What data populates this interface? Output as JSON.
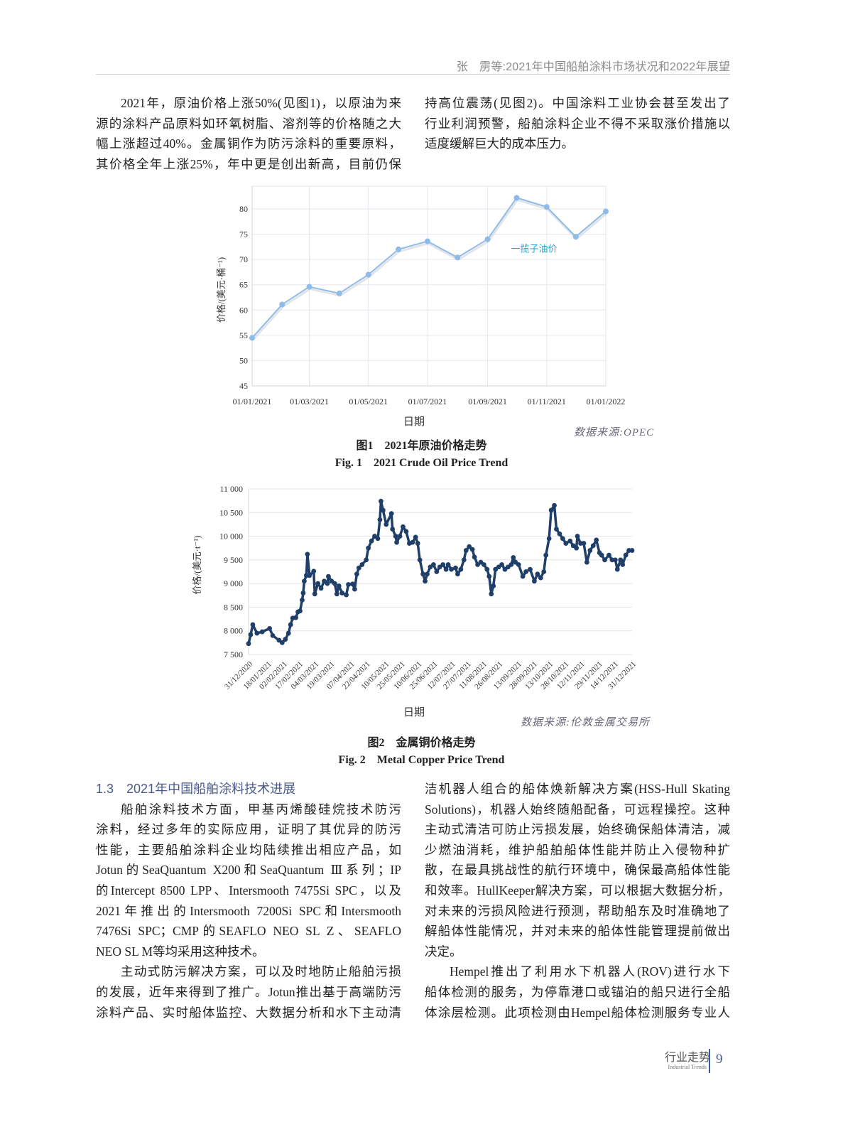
{
  "header": {
    "running_title": "张　雳等:2021年中国船舶涂料市场状况和2022年展望"
  },
  "intro": {
    "left_lines": [
      "2021年，原油价格上涨50%(见图1)，以原油为来",
      "源的涂料产品原料如环氧树脂、溶剂等的价格随之大",
      "幅上涨超过40%。金属铜作为防污涂料的重要原料，",
      "其价格全年上涨25%，年中更是创出新高，目前仍保"
    ],
    "right_lines": [
      "持高位震荡(见图2)。中国涂料工业协会甚至发出了",
      "行业利润预警，船舶涂料企业不得不采取涨价措施以",
      "适度缓解巨大的成本压力。"
    ]
  },
  "figure1": {
    "x_title": "日期",
    "source": "数据来源:OPEC",
    "caption_cn": "图1　2021年原油价格走势",
    "caption_en": "Fig. 1　2021 Crude Oil Price Trend"
  },
  "figure2": {
    "x_title": "日期",
    "source": "数据来源:伦敦金属交易所",
    "caption_cn": "图2　金属铜价格走势",
    "caption_en": "Fig. 2　Metal Copper Price Trend"
  },
  "chart_data": [
    {
      "type": "line",
      "ylabel": "价格/(美元·桶⁻¹)",
      "xlabel": "日期",
      "ylim": [
        45,
        85
      ],
      "yticks": [
        "45",
        "50",
        "55",
        "60",
        "65",
        "70",
        "75",
        "80"
      ],
      "xticks": [
        "01/01/2021",
        "01/03/2021",
        "01/05/2021",
        "01/07/2021",
        "01/09/2021",
        "01/11/2021",
        "01/01/2022"
      ],
      "grid": true,
      "legend_position": "inline-right",
      "color": "#8fbbe8",
      "label_color": "#22a7d0",
      "series": [
        {
          "name": "一揽子油价",
          "x": [
            "01/01/2021",
            "01/02/2021",
            "01/03/2021",
            "01/04/2021",
            "01/05/2021",
            "01/06/2021",
            "01/07/2021",
            "01/08/2021",
            "01/09/2021",
            "01/10/2021",
            "01/11/2021",
            "01/12/2021",
            "01/01/2022"
          ],
          "values": [
            54.5,
            61.1,
            64.6,
            63.3,
            67.0,
            72.0,
            73.6,
            70.4,
            74.0,
            82.2,
            80.4,
            74.5,
            79.5
          ]
        }
      ]
    },
    {
      "type": "line",
      "ylabel": "价格/(美元·t⁻¹)",
      "xlabel": "日期",
      "ylim": [
        7500,
        11000
      ],
      "yticks": [
        "7 500",
        "8 000",
        "8 500",
        "9 000",
        "9 500",
        "10 000",
        "10 500",
        "11 000"
      ],
      "xticks": [
        "31/12/2020",
        "18/01/2021",
        "02/02/2021",
        "17/02/2021",
        "04/03/2021",
        "19/03/2021",
        "07/04/2021",
        "22/04/2021",
        "10/05/2021",
        "25/05/2021",
        "10/06/2021",
        "25/06/2021",
        "12/07/2021",
        "27/07/2021",
        "11/08/2021",
        "26/08/2021",
        "13/09/2021",
        "28/09/2021",
        "13/10/2021",
        "28/10/2021",
        "12/11/2021",
        "29/11/2021",
        "14/12/2021",
        "31/12/2021"
      ],
      "grid": true,
      "color": "#1f3f68",
      "series": [
        {
          "x": [
            "2020-12-31",
            "2021-01-02",
            "2021-01-04",
            "2021-01-08",
            "2021-01-13",
            "2021-01-20",
            "2021-01-23",
            "2021-01-29",
            "2021-02-01",
            "2021-02-04",
            "2021-02-07",
            "2021-02-09",
            "2021-02-11",
            "2021-02-14",
            "2021-02-16",
            "2021-02-18",
            "2021-02-20",
            "2021-02-21",
            "2021-02-22",
            "2021-02-24",
            "2021-02-25",
            "2021-02-27",
            "2021-03-03",
            "2021-03-04",
            "2021-03-07",
            "2021-03-10",
            "2021-03-13",
            "2021-03-16",
            "2021-03-17",
            "2021-03-20",
            "2021-03-23",
            "2021-03-25",
            "2021-03-27",
            "2021-03-30",
            "2021-04-03",
            "2021-04-05",
            "2021-04-09",
            "2021-04-11",
            "2021-04-13",
            "2021-04-15",
            "2021-04-18",
            "2021-04-22",
            "2021-04-24",
            "2021-04-27",
            "2021-04-30",
            "2021-05-03",
            "2021-05-05",
            "2021-05-06",
            "2021-05-08",
            "2021-05-11",
            "2021-05-16",
            "2021-05-17",
            "2021-05-20",
            "2021-05-21",
            "2021-05-24",
            "2021-05-27",
            "2021-05-30",
            "2021-06-02",
            "2021-06-05",
            "2021-06-08",
            "2021-06-10",
            "2021-06-12",
            "2021-06-15",
            "2021-06-17",
            "2021-06-19",
            "2021-06-22",
            "2021-06-25",
            "2021-06-28",
            "2021-07-01",
            "2021-07-04",
            "2021-07-07",
            "2021-07-09",
            "2021-07-12",
            "2021-07-16",
            "2021-07-18",
            "2021-07-21",
            "2021-07-24",
            "2021-07-26",
            "2021-07-29",
            "2021-08-01",
            "2021-08-03",
            "2021-08-06",
            "2021-08-09",
            "2021-08-12",
            "2021-08-15",
            "2021-08-17",
            "2021-08-19",
            "2021-08-21",
            "2021-08-23",
            "2021-08-26",
            "2021-08-29",
            "2021-09-01",
            "2021-09-04",
            "2021-09-07",
            "2021-09-09",
            "2021-09-11",
            "2021-09-14",
            "2021-09-18",
            "2021-09-21",
            "2021-09-25",
            "2021-09-29",
            "2021-10-02",
            "2021-10-05",
            "2021-10-08",
            "2021-10-10",
            "2021-10-13",
            "2021-10-15",
            "2021-10-18",
            "2021-10-20",
            "2021-10-23",
            "2021-10-26",
            "2021-10-29",
            "2021-11-02",
            "2021-11-05",
            "2021-11-08",
            "2021-11-09",
            "2021-11-12",
            "2021-11-15",
            "2021-11-18",
            "2021-11-21",
            "2021-11-24",
            "2021-11-27",
            "2021-11-30",
            "2021-12-02",
            "2021-12-05",
            "2021-12-09",
            "2021-12-12",
            "2021-12-15",
            "2021-12-17",
            "2021-12-20",
            "2021-12-22",
            "2021-12-25",
            "2021-12-28",
            "2021-12-31"
          ],
          "values": [
            7730,
            7920,
            8130,
            7950,
            7980,
            8050,
            7900,
            7800,
            7750,
            7820,
            7950,
            8130,
            8270,
            8280,
            8400,
            8420,
            8650,
            8800,
            9050,
            9170,
            9620,
            9170,
            9260,
            8780,
            9000,
            8900,
            9050,
            9000,
            9150,
            9050,
            9000,
            8780,
            8950,
            8800,
            8760,
            8980,
            8990,
            8880,
            9200,
            9330,
            9400,
            9500,
            9750,
            9900,
            10000,
            9950,
            10350,
            10740,
            10550,
            10250,
            10480,
            10150,
            10000,
            9870,
            10000,
            10200,
            10100,
            9850,
            9870,
            9980,
            9850,
            9500,
            9200,
            9050,
            9200,
            9350,
            9400,
            9250,
            9350,
            9400,
            9300,
            9400,
            9300,
            9330,
            9200,
            9300,
            9500,
            9700,
            9780,
            9720,
            9560,
            9400,
            9450,
            9400,
            9300,
            9150,
            8780,
            8950,
            9300,
            9350,
            9400,
            9300,
            9350,
            9400,
            9550,
            9450,
            9400,
            9150,
            9250,
            9300,
            9050,
            9200,
            9120,
            9250,
            9600,
            9950,
            10550,
            10650,
            10150,
            10050,
            9950,
            9850,
            9900,
            9800,
            9750,
            10000,
            9850,
            9850,
            9450,
            9700,
            9800,
            9920,
            9650,
            9600,
            9500,
            9600,
            9500,
            9500,
            9300,
            9500,
            9400,
            9600,
            9700,
            9700
          ]
        }
      ]
    }
  ],
  "section": {
    "number": "1.3",
    "title": "2021年中国船舶涂料技术进展",
    "left_lines": [
      "船舶涂料技术方面，甲基丙烯酸硅烷技术防污",
      "涂料，经过多年的实际应用，证明了其优异的防污",
      "性能，主要船舶涂料企业均陆续推出相应产品，如",
      "Jotun的SeaQuantum X200和SeaQuantum Ⅲ系列；IP",
      "的Intercept 8500 LPP、Intersmooth 7475Si SPC，以及",
      "2021年推出的Intersmooth 7200Si SPC和Intersmooth",
      "7476Si SPC；CMP的SEAFLO NEO SL Z、SEAFLO",
      "NEO SL M等均采用这种技术。",
      "主动式防污解决方案，可以及时地防止船舶污损",
      "的发展，近年来得到了推广。Jotun推出基于高端防污",
      "涂料产品、实时船体监控、大数据分析和水下主动清"
    ],
    "right_lines": [
      "洁机器人组合的船体焕新解决方案(HSS-Hull Skating",
      "Solutions)，机器人始终随船配备，可远程操控。这种",
      "主动式清洁可防止污损发展，始终确保船体清洁，减",
      "少燃油消耗，维护船舶船体性能并防止入侵物种扩",
      "散，在最具挑战性的航行环境中，确保最高船体性能",
      "和效率。HullKeeper解决方案，可以根据大数据分析，",
      "对未来的污损风险进行预测，帮助船东及时准确地了",
      "解船体性能情况，并对未来的船体性能管理提前做出",
      "决定。",
      "Hempel推出了利用水下机器人(ROV)进行水下",
      "船体检测的服务，为停靠港口或锚泊的船只进行全船",
      "体涂层检测。此项检测由Hempel船体检测服务专业人"
    ]
  },
  "footer": {
    "section_cn": "行业走势",
    "section_en": "Industrial Trends",
    "page_number": "9"
  }
}
